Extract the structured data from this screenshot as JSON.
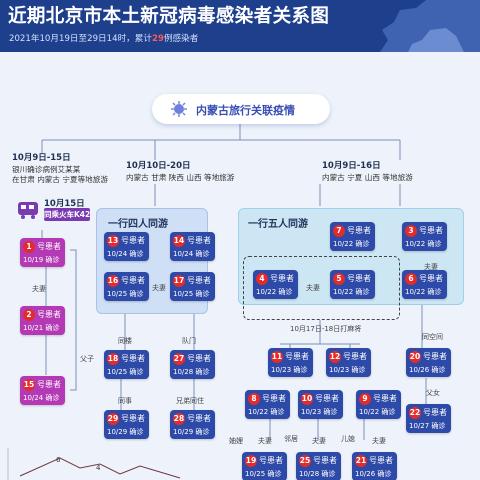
{
  "header": {
    "title": "近期北京市本土新冠病毒感染者关系图",
    "subtitle_prefix": "2021年10月19日至29日14时，累计",
    "subtitle_count": "29",
    "subtitle_suffix": "例感染者"
  },
  "banner": {
    "label": "内蒙古旅行关联疫情"
  },
  "groups": [
    {
      "date": "10月9日-15日",
      "note1": "银川确诊病例艾某某",
      "note2": "在甘肃 内蒙古 宁夏等地旅游"
    },
    {
      "date": "10月10日-20日",
      "note1": "内蒙古 甘肃 陕西 山西 等地旅游"
    },
    {
      "date": "10月9日-16日",
      "note1": "内蒙古 宁夏 山西 等地旅游"
    }
  ],
  "train": {
    "date": "10月15日",
    "label": "同乘火车K42"
  },
  "panels": {
    "left_title": "一行四人同游",
    "right_title": "一行五人同游"
  },
  "patient_label": "号患者",
  "patients": [
    {
      "num": "1",
      "date": "10/19 确诊",
      "color": "pink"
    },
    {
      "num": "2",
      "date": "10/21 确诊",
      "color": "pink"
    },
    {
      "num": "15",
      "date": "10/24 确诊",
      "color": "pink"
    },
    {
      "num": "13",
      "date": "10/24 确诊",
      "color": "blue"
    },
    {
      "num": "14",
      "date": "10/24 确诊",
      "color": "blue"
    },
    {
      "num": "16",
      "date": "10/25 确诊",
      "color": "blue"
    },
    {
      "num": "17",
      "date": "10/25 确诊",
      "color": "blue"
    },
    {
      "num": "18",
      "date": "10/25 确诊",
      "color": "blue"
    },
    {
      "num": "27",
      "date": "10/28 确诊",
      "color": "blue"
    },
    {
      "num": "29",
      "date": "10/29 确诊",
      "color": "blue"
    },
    {
      "num": "28",
      "date": "10/29 确诊",
      "color": "blue"
    },
    {
      "num": "7",
      "date": "10/22 确诊",
      "color": "blue"
    },
    {
      "num": "3",
      "date": "10/22 确诊",
      "color": "blue"
    },
    {
      "num": "4",
      "date": "10/22 确诊",
      "color": "blue"
    },
    {
      "num": "5",
      "date": "10/22 确诊",
      "color": "blue"
    },
    {
      "num": "6",
      "date": "10/22 确诊",
      "color": "blue"
    },
    {
      "num": "11",
      "date": "10/23 确诊",
      "color": "blue"
    },
    {
      "num": "12",
      "date": "10/23 确诊",
      "color": "blue"
    },
    {
      "num": "20",
      "date": "10/26 确诊",
      "color": "blue"
    },
    {
      "num": "8",
      "date": "10/22 确诊",
      "color": "blue"
    },
    {
      "num": "10",
      "date": "10/23 确诊",
      "color": "blue"
    },
    {
      "num": "9",
      "date": "10/22 确诊",
      "color": "blue"
    },
    {
      "num": "22",
      "date": "10/27 确诊",
      "color": "blue"
    },
    {
      "num": "19",
      "date": "10/25 确诊",
      "color": "blue"
    },
    {
      "num": "25",
      "date": "10/28 确诊",
      "color": "blue"
    },
    {
      "num": "21",
      "date": "10/26 确诊",
      "color": "blue"
    }
  ],
  "relations": {
    "spouse": "夫妻",
    "father_son": "父子",
    "same_building": "同楼",
    "opposite_door": "队门",
    "colleague": "同事",
    "brothers": "兄弟同住",
    "mahjong": "10月17日-18日打麻将",
    "same_space": "同空间",
    "father_daughter": "父女",
    "brothers_wife": "妯娌",
    "neighbor": "邻居",
    "father_son_2": "父子",
    "step_son": "儿媳"
  },
  "mini_chart": {
    "labels": [
      "6",
      "4"
    ],
    "color": "#6b3a3a"
  }
}
